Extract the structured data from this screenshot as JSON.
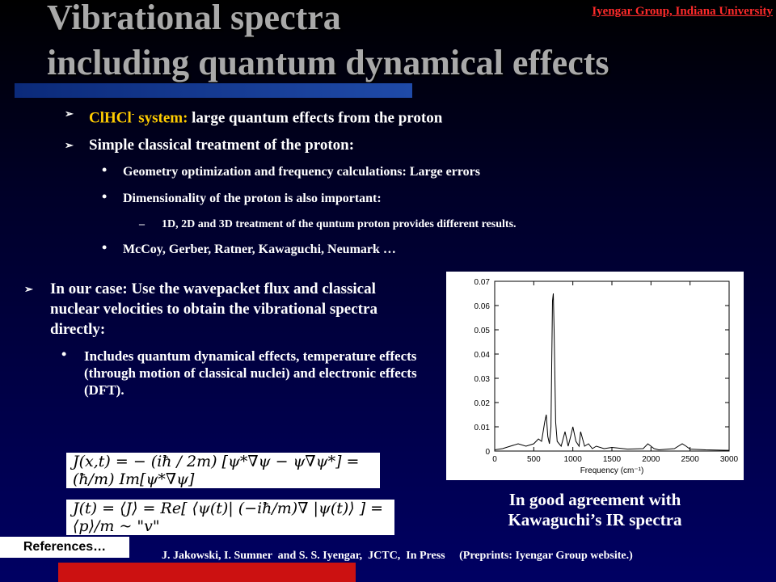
{
  "slide": {
    "title_line1": "Vibrational spectra",
    "title_line2": "including quantum dynamical effects",
    "affiliation": "Iyengar Group, Indiana University"
  },
  "bullets": {
    "b1_prefix": "ClHCl",
    "b1_sup": "-",
    "b1_mid": " system:",
    "b1_rest": " large quantum effects from the proton",
    "b2": "Simple classical treatment of the proton:",
    "b2_sub1": "Geometry optimization and frequency calculations: Large errors",
    "b2_sub2": "Dimensionality of the proton is also important:",
    "b2_sub2_dash": "1D, 2D and 3D treatment of the quntum proton provides different results.",
    "b2_sub3": "McCoy, Gerber, Ratner, Kawaguchi, Neumark …"
  },
  "left": {
    "main": "In our case: Use the wavepacket flux and classical nuclear velocities to obtain the vibrational spectra directly:",
    "sub": "Includes quantum dynamical effects, temperature effects (through motion of classical nuclei) and electronic effects (DFT)."
  },
  "equations": {
    "eq1": "J(x,t) = − (iħ / 2m) [ψ*∇ψ − ψ∇ψ*] = (ħ/m) Im[ψ*∇ψ]",
    "eq2": "J(t) = ⟨J⟩ = Re[ ⟨ψ(t)| (−iħ/m)∇ |ψ(t)⟩ ] = ⟨p⟩/m  ~  \"v\""
  },
  "chart_data": {
    "type": "line",
    "xlabel": "Frequency (cm⁻¹)",
    "ylabel": "",
    "xlim": [
      0,
      3000
    ],
    "ylim": [
      0,
      0.07
    ],
    "xticks": [
      0,
      500,
      1000,
      1500,
      2000,
      2500,
      3000
    ],
    "yticks": [
      0,
      0.01,
      0.02,
      0.03,
      0.04,
      0.05,
      0.06,
      0.07
    ],
    "grid": false,
    "series": [
      {
        "x": [
          0,
          100,
          200,
          300,
          400,
          500,
          560,
          600,
          640,
          660,
          680,
          700,
          720,
          740,
          750,
          760,
          780,
          800,
          850,
          900,
          940,
          980,
          1000,
          1040,
          1080,
          1100,
          1150,
          1200,
          1250,
          1300,
          1400,
          1500,
          1700,
          1900,
          1960,
          2000,
          2040,
          2100,
          2300,
          2400,
          2450,
          2500,
          2700,
          3000
        ],
        "y": [
          0.0005,
          0.001,
          0.002,
          0.003,
          0.002,
          0.003,
          0.005,
          0.004,
          0.012,
          0.015,
          0.006,
          0.003,
          0.01,
          0.062,
          0.065,
          0.05,
          0.012,
          0.004,
          0.002,
          0.008,
          0.002,
          0.007,
          0.01,
          0.004,
          0.002,
          0.008,
          0.002,
          0.003,
          0.001,
          0.002,
          0.001,
          0.0015,
          0.0008,
          0.001,
          0.003,
          0.002,
          0.001,
          0.0005,
          0.001,
          0.003,
          0.002,
          0.0008,
          0.0005,
          0.0003
        ]
      }
    ]
  },
  "caption": {
    "line1": "In good agreement with",
    "line2": "Kawaguchi’s IR spectra"
  },
  "references_button": "References…",
  "citation": "J. Jakowski, I. Sumner  and S. S. Iyengar,  JCTC,  In Press     (Preprints: Iyengar Group website.)",
  "colors": {
    "title_gray": "#a9a9a9",
    "accent_yellow": "#ffcc00",
    "affiliation_red": "#ff2b2b",
    "footer_red": "#cc1111"
  },
  "icons": {
    "bullet_arrow": "arrow-bullet-icon",
    "bullet_dot": "dot-bullet-icon"
  }
}
